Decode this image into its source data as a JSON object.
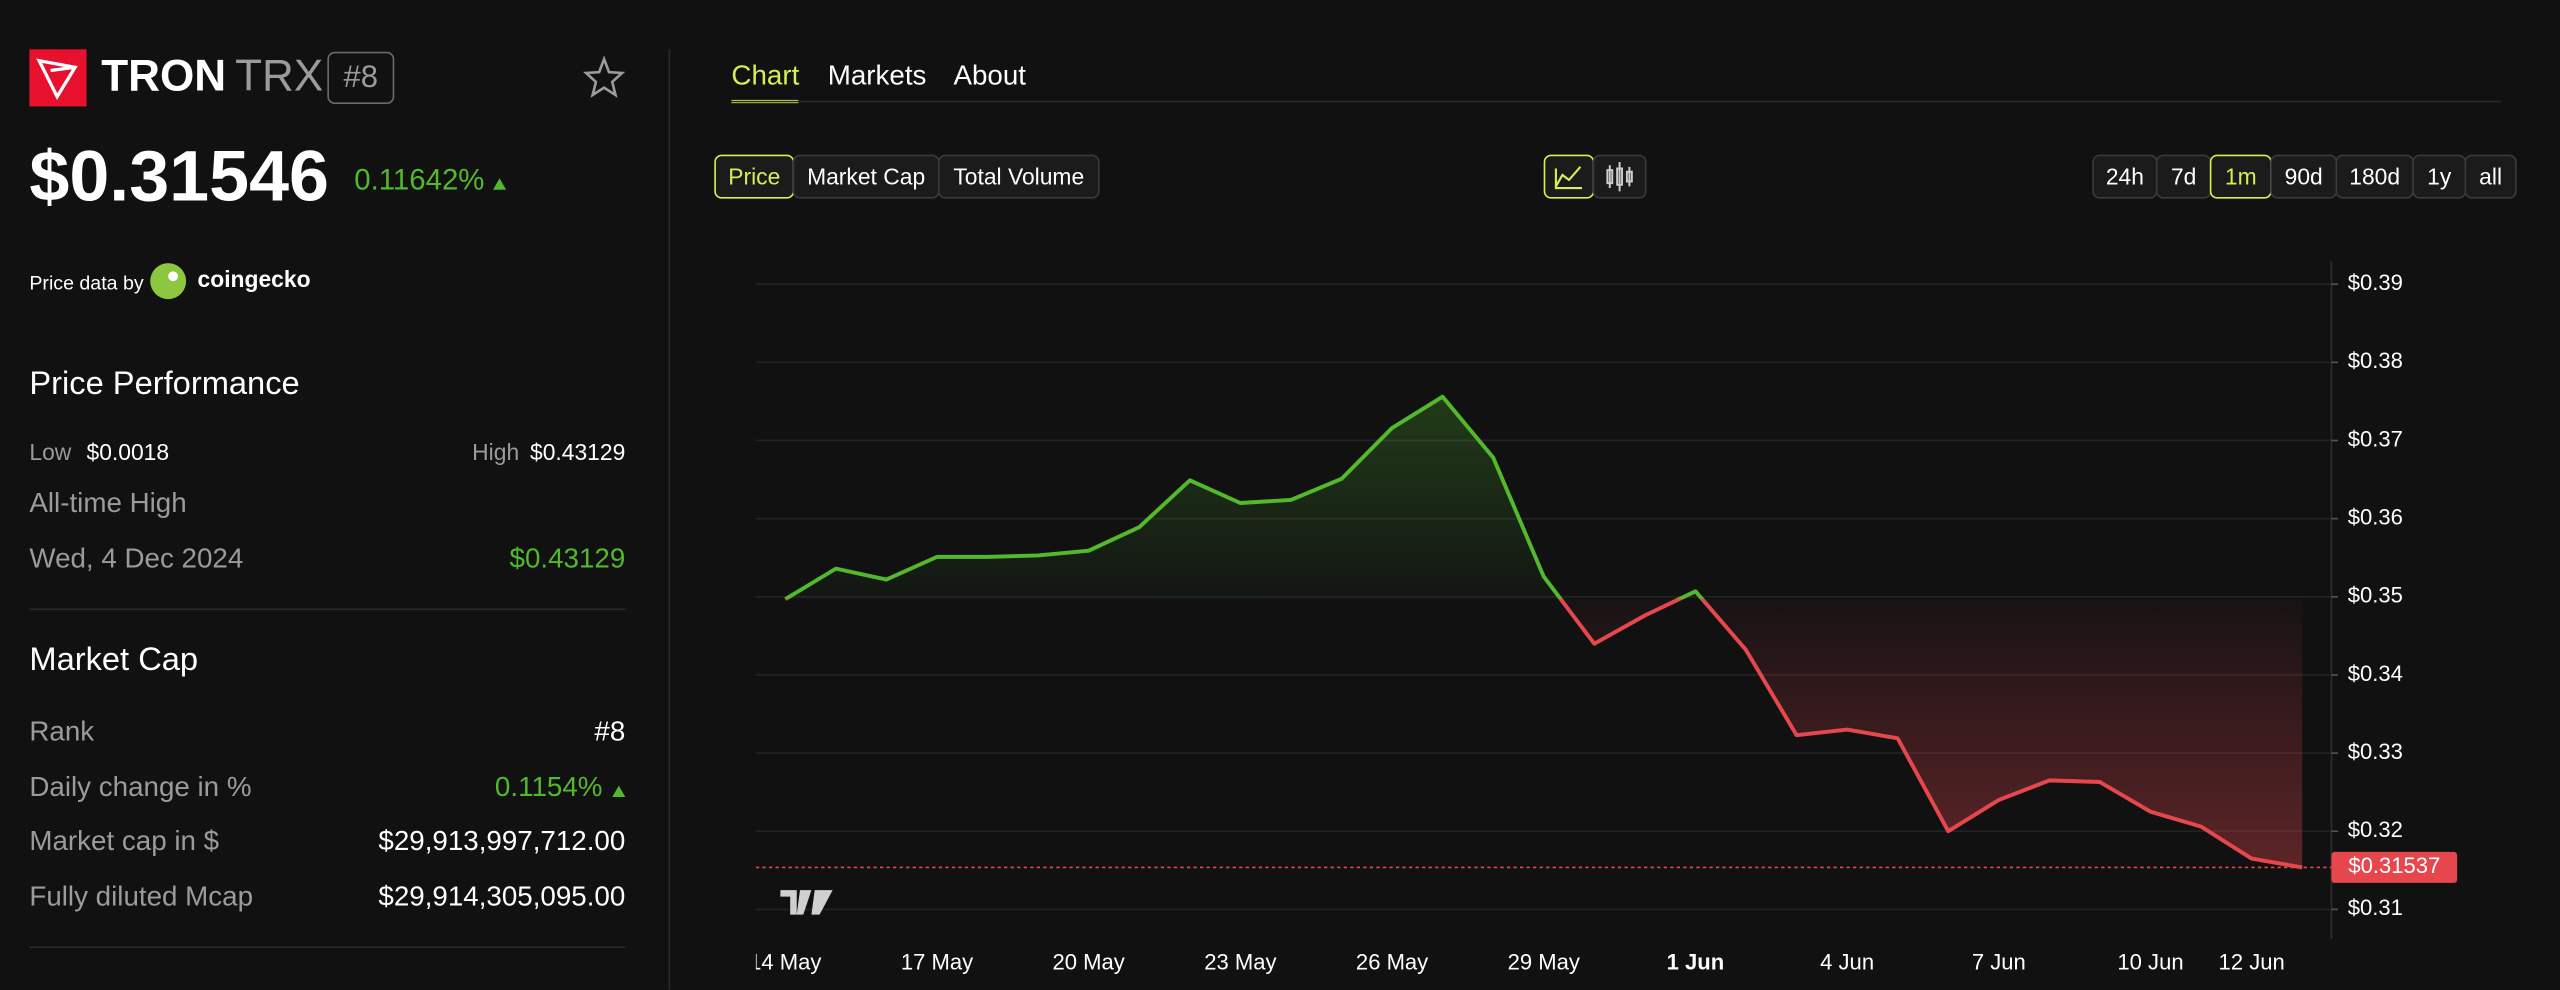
{
  "header": {
    "name": "TRON",
    "symbol": "TRX",
    "rank": "#8",
    "price": "$0.31546",
    "change": "0.11642%",
    "source_prefix": "Price data by",
    "source": "coingecko"
  },
  "performance": {
    "title": "Price Performance",
    "low_label": "Low",
    "low": "$0.0018",
    "high_label": "High",
    "high": "$0.43129",
    "ath_label": "All-time High",
    "ath_date": "Wed, 4 Dec 2024",
    "ath": "$0.43129"
  },
  "market_cap": {
    "title": "Market Cap",
    "rows": [
      [
        "Rank",
        "#8"
      ],
      [
        "Daily change in %",
        "0.1154%"
      ],
      [
        "Market cap in $",
        "$29,913,997,712.00"
      ],
      [
        "Fully diluted Mcap",
        "$29,914,305,095.00"
      ]
    ]
  },
  "tabs": [
    "Chart",
    "Markets",
    "About"
  ],
  "metric_buttons": [
    "Price",
    "Market Cap",
    "Total Volume"
  ],
  "ranges": [
    "24h",
    "7d",
    "1m",
    "90d",
    "180d",
    "1y",
    "all"
  ],
  "chart_data": {
    "type": "line",
    "categories": [
      "14 May",
      null,
      null,
      "17 May",
      null,
      null,
      "20 May",
      null,
      null,
      "23 May",
      null,
      null,
      "26 May",
      null,
      null,
      "29 May",
      null,
      null,
      "1 Jun",
      null,
      null,
      "4 Jun",
      null,
      null,
      "7 Jun",
      null,
      null,
      "10 Jun",
      null,
      "12 Jun",
      null
    ],
    "values": [
      0.3497,
      0.3536,
      0.3522,
      0.3551,
      0.3551,
      0.3553,
      0.3559,
      0.3589,
      0.3649,
      0.362,
      0.3624,
      0.3651,
      0.3716,
      0.3756,
      0.3678,
      0.3526,
      0.344,
      0.3476,
      0.3507,
      0.3432,
      0.3323,
      0.333,
      0.3319,
      0.32,
      0.324,
      0.3265,
      0.3263,
      0.3225,
      0.3206,
      0.3165,
      0.31537
    ],
    "up_color": "#52b82c",
    "down_color": "#e5474d",
    "last_price_label": "$0.31537",
    "ylim": [
      0.3062,
      0.3929
    ],
    "yticks": [
      {
        "value": 0.39,
        "label": "$0.39"
      },
      {
        "value": 0.38,
        "label": "$0.38"
      },
      {
        "value": 0.37,
        "label": "$0.37"
      },
      {
        "value": 0.36,
        "label": "$0.36"
      },
      {
        "value": 0.35,
        "label": "$0.35"
      },
      {
        "value": 0.34,
        "label": "$0.34"
      },
      {
        "value": 0.33,
        "label": "$0.33"
      },
      {
        "value": 0.32,
        "label": "$0.32"
      },
      {
        "value": 0.31,
        "label": "$0.31"
      }
    ],
    "grid": true
  }
}
